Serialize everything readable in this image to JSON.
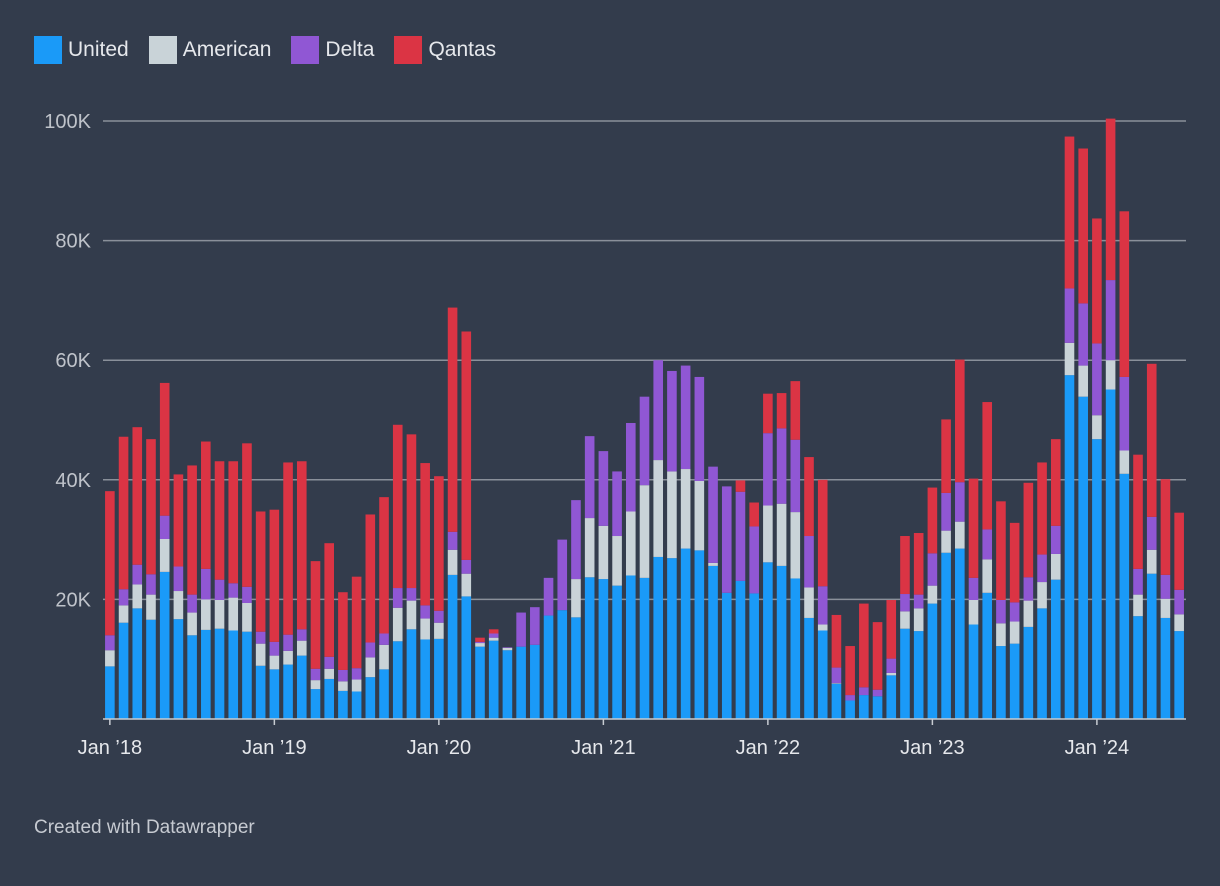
{
  "chart_data": {
    "type": "bar",
    "stacked": true,
    "title": "",
    "xlabel": "",
    "ylabel": "",
    "ylim": [
      0,
      100000
    ],
    "yticks": [
      20000,
      40000,
      60000,
      80000,
      100000
    ],
    "ytick_labels": [
      "20K",
      "40K",
      "60K",
      "80K",
      "100K"
    ],
    "legend_position": "top-left",
    "grid": true,
    "x_tick_labels": [
      {
        "label": "Jan ’18",
        "index": 0
      },
      {
        "label": "Jan ’19",
        "index": 12
      },
      {
        "label": "Jan ’20",
        "index": 24
      },
      {
        "label": "Jan ’21",
        "index": 36
      },
      {
        "label": "Jan ’22",
        "index": 48
      },
      {
        "label": "Jan ’23",
        "index": 60
      },
      {
        "label": "Jan ’24",
        "index": 72
      }
    ],
    "series": [
      {
        "name": "United",
        "color": "#1a9af8",
        "values": [
          8800,
          16100,
          18500,
          16600,
          24600,
          16700,
          14000,
          14900,
          15100,
          14800,
          14600,
          8900,
          8300,
          9100,
          10600,
          5000,
          6700,
          4700,
          4600,
          7000,
          8300,
          13000,
          15000,
          13300,
          13400,
          24100,
          20500,
          12100,
          13100,
          11500,
          12100,
          12400,
          17300,
          18200,
          17000,
          23700,
          23400,
          22300,
          24000,
          23600,
          27100,
          26900,
          28500,
          28200,
          25600,
          21100,
          23100,
          21000,
          26200,
          25600,
          23500,
          16900,
          14800,
          5900,
          3100,
          4000,
          3800,
          7300,
          15100,
          14700,
          19300,
          27800,
          28500,
          15800,
          21100,
          12200,
          12600,
          15400,
          18500,
          23300,
          57500,
          53900,
          46800,
          55100,
          41000,
          17200,
          24300,
          16900,
          14700
        ]
      },
      {
        "name": "American",
        "color": "#c9d3d8",
        "values": [
          2700,
          2900,
          4000,
          4200,
          5500,
          4700,
          3800,
          5100,
          4800,
          5500,
          4800,
          3700,
          2300,
          2300,
          2500,
          1500,
          1700,
          1600,
          2000,
          3300,
          4100,
          5600,
          4800,
          3500,
          2700,
          4200,
          3800,
          600,
          500,
          400,
          0,
          0,
          0,
          0,
          6400,
          9900,
          8900,
          8300,
          10700,
          15500,
          16200,
          14500,
          13300,
          11600,
          500,
          0,
          0,
          0,
          9500,
          10400,
          11100,
          5100,
          1000,
          100,
          0,
          0,
          0,
          400,
          2900,
          3800,
          3000,
          3700,
          4500,
          4100,
          5600,
          3800,
          3700,
          4400,
          4400,
          4300,
          5400,
          5200,
          4000,
          4900,
          3900,
          3600,
          4000,
          3200,
          2800
        ]
      },
      {
        "name": "Delta",
        "color": "#9057d4",
        "values": [
          2500,
          2700,
          3300,
          3400,
          3900,
          4100,
          3000,
          5100,
          3400,
          2400,
          2700,
          2000,
          2300,
          2700,
          1900,
          1900,
          2000,
          1900,
          1900,
          2500,
          1900,
          3300,
          2100,
          2200,
          2000,
          3000,
          2300,
          200,
          700,
          100,
          5700,
          6300,
          6300,
          11800,
          13200,
          13700,
          12500,
          10800,
          14800,
          14800,
          16700,
          16800,
          17300,
          17400,
          16100,
          17800,
          14900,
          11200,
          12100,
          12600,
          12100,
          8600,
          6400,
          2600,
          900,
          1300,
          1100,
          2400,
          2900,
          2300,
          5400,
          6300,
          6600,
          3700,
          5000,
          3900,
          3200,
          3900,
          4600,
          4700,
          9100,
          10400,
          12000,
          13400,
          12300,
          4300,
          5500,
          4000,
          4100
        ]
      },
      {
        "name": "Qantas",
        "color": "#db3444",
        "values": [
          24100,
          25500,
          23000,
          22600,
          22200,
          15400,
          21600,
          21300,
          19800,
          20400,
          24000,
          20100,
          22100,
          28800,
          28100,
          18000,
          19000,
          13000,
          15300,
          21400,
          22800,
          27300,
          25700,
          23800,
          22500,
          37500,
          38200,
          700,
          700,
          0,
          0,
          0,
          0,
          0,
          0,
          0,
          0,
          0,
          0,
          0,
          0,
          0,
          0,
          0,
          0,
          0,
          1900,
          4000,
          6600,
          5900,
          9800,
          13200,
          17800,
          8800,
          8200,
          14000,
          11300,
          9800,
          9700,
          10300,
          11000,
          12300,
          20500,
          16600,
          21300,
          16500,
          13300,
          15800,
          15400,
          14500,
          25400,
          25900,
          20900,
          27000,
          27700,
          19100,
          25600,
          16000,
          12900
        ]
      }
    ]
  },
  "footer": {
    "credit": "Created with Datawrapper"
  }
}
